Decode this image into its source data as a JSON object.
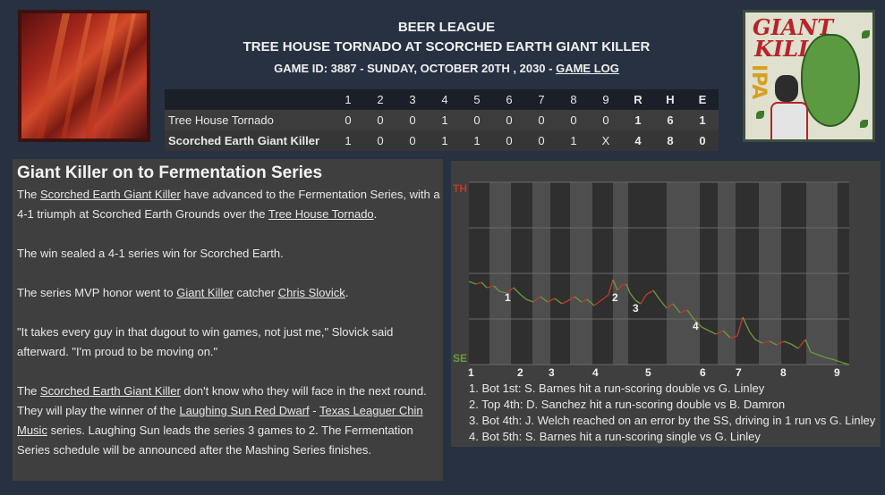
{
  "header": {
    "league": "BEER LEAGUE",
    "matchup": "TREE HOUSE TORNADO AT SCORCHED EARTH GIANT KILLER",
    "info": "GAME ID: 3887 - SUNDAY, OCTOBER 20TH , 2030 - ",
    "game_log_link": "GAME LOG"
  },
  "logos": {
    "home_logo_text_1": "GIANT",
    "home_logo_text_2": "KILLER",
    "home_logo_text_3": "IPA"
  },
  "linescore": {
    "columns": [
      "1",
      "2",
      "3",
      "4",
      "5",
      "6",
      "7",
      "8",
      "9",
      "R",
      "H",
      "E"
    ],
    "rows": [
      {
        "team": "Tree House Tornado",
        "cells": [
          "0",
          "0",
          "0",
          "1",
          "0",
          "0",
          "0",
          "0",
          "0",
          "1",
          "6",
          "1"
        ]
      },
      {
        "team": "Scorched Earth Giant Killer",
        "cells": [
          "1",
          "0",
          "0",
          "1",
          "1",
          "0",
          "0",
          "1",
          "X",
          "4",
          "8",
          "0"
        ]
      }
    ]
  },
  "story": {
    "headline": "Giant Killer on to Fermentation Series",
    "p1_a": "The ",
    "p1_link1": "Scorched Earth Giant Killer",
    "p1_b": " have advanced to the Fermentation Series, with a 4-1 triumph at Scorched Earth Grounds over the ",
    "p1_link2": "Tree House Tornado",
    "p1_c": ".",
    "p2": "The win sealed a 4-1 series win for Scorched Earth.",
    "p3_a": "The series MVP honor went to ",
    "p3_link1": "Giant Killer",
    "p3_b": " catcher ",
    "p3_link2": "Chris Slovick",
    "p3_c": ".",
    "p4": "\"It takes every guy in that dugout to win games, not just me,\" Slovick said afterward. \"I'm proud to be moving on.\"",
    "p5_a": "The ",
    "p5_link1": "Scorched Earth Giant Killer",
    "p5_b": " don't know who they will face in the next round. They will play the winner of the ",
    "p5_link2": "Laughing Sun Red Dwarf",
    "p5_c": " - ",
    "p5_link3": "Texas Leaguer Chin Music",
    "p5_d": " series. Laughing Sun leads the series 3 games to 2. The Fermentation Series schedule will be announced after the Mashing Series finishes."
  },
  "win_prob": {
    "top_label": "TH",
    "bottom_label": "SE",
    "top_color": "#c0392b",
    "bottom_color": "#6a9a3a",
    "inning_labels": [
      "1",
      "2",
      "3",
      "4",
      "5",
      "6",
      "7",
      "8",
      "9"
    ],
    "marker_labels": [
      "1",
      "2",
      "3",
      "4"
    ],
    "notes": [
      "1. Bot 1st: S. Barnes hit a run-scoring double vs G. Linley",
      "2. Top 4th: D. Sanchez hit a run-scoring double vs B. Damron",
      "3. Bot 4th: J. Welch reached on an error by the SS, driving in 1 run vs G. Linley",
      "4. Bot 5th: S. Barnes hit a run-scoring single vs G. Linley"
    ]
  }
}
